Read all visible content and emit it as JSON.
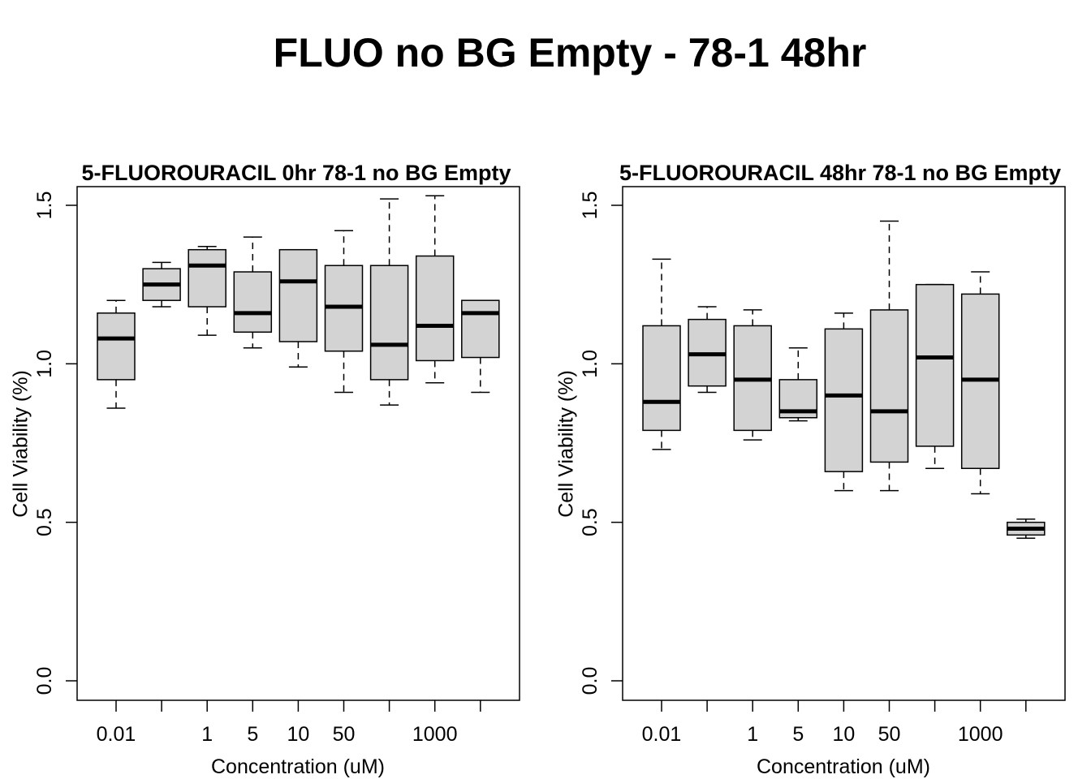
{
  "figure": {
    "title": "FLUO no BG Empty - 78-1 48hr"
  },
  "chart_data": [
    {
      "type": "boxplot",
      "title": "5-FLUOROURACIL 0hr 78-1 no BG Empty",
      "xlabel": "Concentration (uM)",
      "ylabel": "Cell Viability (%)",
      "ylim": [
        0,
        1.5
      ],
      "yticks": [
        "0.0",
        "0.5",
        "1.0",
        "1.5"
      ],
      "categories": [
        "0.01",
        "",
        "1",
        "5",
        "10",
        "50",
        "",
        "1000",
        ""
      ],
      "boxes": [
        {
          "min": 0.86,
          "q1": 0.95,
          "median": 1.08,
          "q3": 1.16,
          "max": 1.2
        },
        {
          "min": 1.18,
          "q1": 1.2,
          "median": 1.25,
          "q3": 1.3,
          "max": 1.32
        },
        {
          "min": 1.09,
          "q1": 1.18,
          "median": 1.31,
          "q3": 1.36,
          "max": 1.37
        },
        {
          "min": 1.05,
          "q1": 1.1,
          "median": 1.16,
          "q3": 1.29,
          "max": 1.4
        },
        {
          "min": 0.99,
          "q1": 1.07,
          "median": 1.26,
          "q3": 1.36,
          "max": 1.36
        },
        {
          "min": 0.91,
          "q1": 1.04,
          "median": 1.18,
          "q3": 1.31,
          "max": 1.42
        },
        {
          "min": 0.87,
          "q1": 0.95,
          "median": 1.06,
          "q3": 1.31,
          "max": 1.52
        },
        {
          "min": 0.94,
          "q1": 1.01,
          "median": 1.12,
          "q3": 1.34,
          "max": 1.53
        },
        {
          "min": 0.91,
          "q1": 1.02,
          "median": 1.16,
          "q3": 1.2,
          "max": 1.2
        }
      ]
    },
    {
      "type": "boxplot",
      "title": "5-FLUOROURACIL 48hr 78-1 no BG Empty",
      "xlabel": "Concentration (uM)",
      "ylabel": "Cell Viability (%)",
      "ylim": [
        0,
        1.5
      ],
      "yticks": [
        "0.0",
        "0.5",
        "1.0",
        "1.5"
      ],
      "categories": [
        "0.01",
        "",
        "1",
        "5",
        "10",
        "50",
        "",
        "1000",
        ""
      ],
      "boxes": [
        {
          "min": 0.73,
          "q1": 0.79,
          "median": 0.88,
          "q3": 1.12,
          "max": 1.33
        },
        {
          "min": 0.91,
          "q1": 0.93,
          "median": 1.03,
          "q3": 1.14,
          "max": 1.18
        },
        {
          "min": 0.76,
          "q1": 0.79,
          "median": 0.95,
          "q3": 1.12,
          "max": 1.17
        },
        {
          "min": 0.82,
          "q1": 0.83,
          "median": 0.85,
          "q3": 0.95,
          "max": 1.05
        },
        {
          "min": 0.6,
          "q1": 0.66,
          "median": 0.9,
          "q3": 1.11,
          "max": 1.16
        },
        {
          "min": 0.6,
          "q1": 0.69,
          "median": 0.85,
          "q3": 1.17,
          "max": 1.45
        },
        {
          "min": 0.67,
          "q1": 0.74,
          "median": 1.02,
          "q3": 1.25,
          "max": 1.25
        },
        {
          "min": 0.59,
          "q1": 0.67,
          "median": 0.95,
          "q3": 1.22,
          "max": 1.29
        },
        {
          "min": 0.45,
          "q1": 0.46,
          "median": 0.48,
          "q3": 0.5,
          "max": 0.51
        }
      ]
    }
  ]
}
